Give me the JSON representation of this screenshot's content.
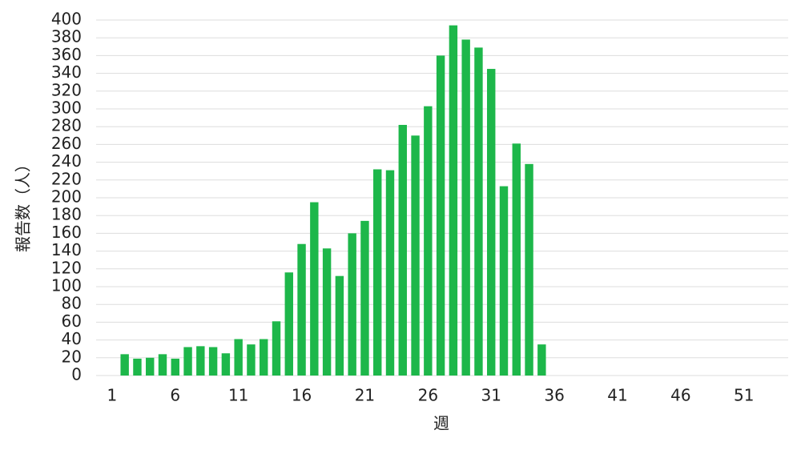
{
  "chart_data": {
    "type": "bar",
    "x_label": "週",
    "y_label": "報告数（人）",
    "categories": [
      "1",
      null,
      null,
      null,
      null,
      "6",
      null,
      null,
      null,
      null,
      "11",
      null,
      null,
      null,
      null,
      "16",
      null,
      null,
      null,
      null,
      "21",
      null,
      null,
      null,
      null,
      "26",
      null,
      null,
      null,
      null,
      "31",
      null,
      null,
      null,
      null,
      "36",
      null,
      null,
      null,
      null,
      "41",
      null,
      null,
      null,
      null,
      "46",
      null,
      null,
      null,
      null,
      "51",
      null,
      null,
      null
    ],
    "values": [
      null,
      24,
      19,
      20,
      24,
      19,
      32,
      33,
      32,
      25,
      41,
      35,
      41,
      61,
      116,
      148,
      195,
      143,
      112,
      160,
      174,
      232,
      231,
      282,
      270,
      303,
      360,
      394,
      378,
      369,
      345,
      213,
      261,
      238,
      35,
      null,
      null,
      null,
      null,
      null,
      null,
      null,
      null,
      null,
      null,
      null,
      null,
      null,
      null,
      null,
      null,
      null,
      null,
      null
    ],
    "color": "#1db74a",
    "ylim": [
      0,
      400
    ],
    "yticks": [
      0,
      20,
      40,
      60,
      80,
      100,
      120,
      140,
      160,
      180,
      200,
      220,
      240,
      260,
      280,
      300,
      320,
      340,
      360,
      380,
      400
    ],
    "grid": true
  }
}
